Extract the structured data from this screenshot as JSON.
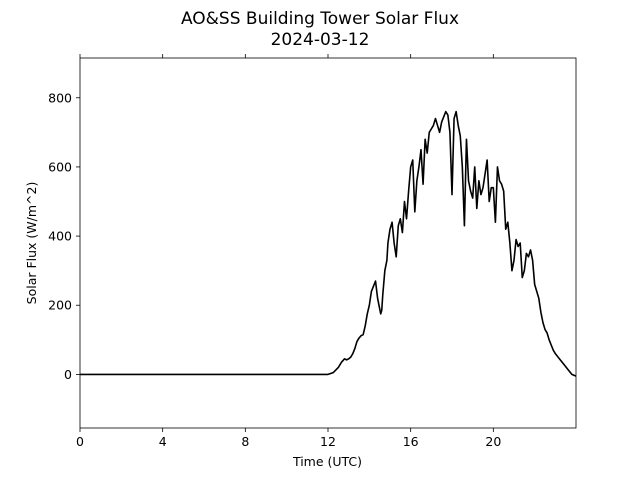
{
  "chart_data": {
    "type": "line",
    "title": "AO&SS Building Tower Solar Flux",
    "subtitle": "2024-03-12",
    "xlabel": "Time (UTC)",
    "ylabel": "Solar Flux (W/m^2)",
    "xlim": [
      0,
      24
    ],
    "ylim": [
      -155,
      915
    ],
    "xticks": [
      0,
      4,
      8,
      12,
      16,
      20
    ],
    "xtick_labels": [
      "0",
      "4",
      "8",
      "12",
      "16",
      "20"
    ],
    "yticks": [
      0,
      200,
      400,
      600,
      800
    ],
    "ytick_labels": [
      "0",
      "200",
      "400",
      "600",
      "800"
    ],
    "grid": false,
    "legend": "none",
    "line_color": "#000000",
    "series": [
      {
        "x": [
          0,
          2,
          4,
          6,
          8,
          10,
          12,
          12.25,
          12.5,
          12.65,
          12.8,
          12.9,
          13.0,
          13.1,
          13.2,
          13.3,
          13.4,
          13.5,
          13.6,
          13.7,
          13.8,
          13.9,
          14.0,
          14.1,
          14.2,
          14.3,
          14.4,
          14.5,
          14.55,
          14.6,
          14.65,
          14.75,
          14.85,
          14.9,
          15.0,
          15.1,
          15.2,
          15.3,
          15.4,
          15.5,
          15.6,
          15.7,
          15.8,
          15.9,
          16.0,
          16.1,
          16.2,
          16.3,
          16.4,
          16.5,
          16.6,
          16.7,
          16.8,
          16.9,
          17.0,
          17.1,
          17.2,
          17.3,
          17.4,
          17.5,
          17.6,
          17.7,
          17.8,
          17.9,
          18.0,
          18.1,
          18.2,
          18.3,
          18.4,
          18.5,
          18.6,
          18.7,
          18.8,
          18.9,
          19.0,
          19.1,
          19.2,
          19.3,
          19.4,
          19.5,
          19.6,
          19.7,
          19.8,
          19.9,
          20.0,
          20.1,
          20.2,
          20.3,
          20.4,
          20.5,
          20.6,
          20.7,
          20.8,
          20.9,
          21.0,
          21.1,
          21.2,
          21.3,
          21.4,
          21.5,
          21.6,
          21.7,
          21.8,
          21.9,
          22.0,
          22.1,
          22.2,
          22.3,
          22.4,
          22.5,
          22.6,
          22.7,
          22.8,
          22.9,
          23.0,
          23.2,
          23.4,
          23.6,
          23.8,
          24.0
        ],
        "values": [
          0,
          0,
          0,
          0,
          0,
          0,
          0,
          5,
          20,
          35,
          45,
          42,
          45,
          50,
          60,
          75,
          95,
          105,
          112,
          115,
          140,
          175,
          200,
          240,
          255,
          270,
          220,
          190,
          175,
          185,
          230,
          300,
          330,
          380,
          420,
          440,
          380,
          340,
          430,
          450,
          410,
          500,
          450,
          530,
          600,
          620,
          470,
          560,
          600,
          650,
          550,
          680,
          640,
          700,
          710,
          720,
          740,
          720,
          700,
          730,
          745,
          760,
          750,
          700,
          520,
          740,
          760,
          720,
          690,
          600,
          430,
          680,
          560,
          530,
          510,
          600,
          480,
          560,
          520,
          540,
          580,
          620,
          500,
          540,
          540,
          440,
          600,
          560,
          550,
          530,
          420,
          440,
          380,
          300,
          330,
          390,
          370,
          380,
          280,
          300,
          350,
          340,
          360,
          330,
          260,
          240,
          220,
          180,
          150,
          130,
          120,
          100,
          85,
          70,
          60,
          45,
          30,
          15,
          0,
          -5
        ]
      }
    ]
  }
}
